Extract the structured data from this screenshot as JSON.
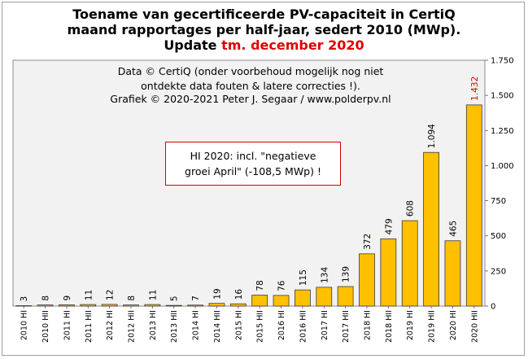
{
  "titles": {
    "line1": "Toename van gecertificeerde PV-capaciteit in CertiQ",
    "line2": "maand rapportages per half-jaar, sedert 2010 (MWp).",
    "line3_prefix": "Update",
    "line3_highlight": "tm. december 2020"
  },
  "notes": {
    "line1": "Data © CertiQ (onder voorbehoud mogelijk nog niet",
    "line2": "ontdekte data fouten & latere correcties !).",
    "line3": "Grafiek © 2020-2021 Peter J. Segaar / www.polderpv.nl"
  },
  "annotation": {
    "line1": "HI 2020: incl. \"negatieve",
    "line2": "groei April\"  (-108,5 MWp) !"
  },
  "colors": {
    "bar_fill": "#ffc000",
    "bar_stroke": "#3a3a3a",
    "plot_bg": "#f2f2f2",
    "last_label": "#e00000"
  },
  "chart_data": {
    "type": "bar",
    "categories": [
      "2010 HI",
      "2010 HII",
      "2011 HI",
      "2011 HII",
      "2012 HI",
      "2012 HII",
      "2013 HI",
      "2013 HII",
      "2014 HI",
      "2014 HII",
      "2015 HI",
      "2015 HII",
      "2016 HI",
      "2016 HII",
      "2017 HI",
      "2017 HII",
      "2018 HI",
      "2018 HII",
      "2019 HI",
      "2019 HII",
      "2020 HI",
      "2020 HII"
    ],
    "values": [
      3,
      8,
      9,
      11,
      12,
      8,
      11,
      5,
      7,
      19,
      16,
      78,
      76,
      115,
      134,
      139,
      372,
      479,
      608,
      1094,
      465,
      1432
    ],
    "value_labels": [
      "3",
      "8",
      "9",
      "11",
      "12",
      "8",
      "11",
      "5",
      "7",
      "19",
      "16",
      "78",
      "76",
      "115",
      "134",
      "139",
      "372",
      "479",
      "608",
      "1.094",
      "465",
      "1.432"
    ],
    "ylim": [
      0,
      1750
    ],
    "yticks": [
      0,
      250,
      500,
      750,
      1000,
      1250,
      1500,
      1750
    ],
    "ytick_labels": [
      "0",
      "250",
      "500",
      "750",
      "1.000",
      "1.250",
      "1.500",
      "1.750"
    ],
    "y_axis_side": "right",
    "grid": false
  }
}
